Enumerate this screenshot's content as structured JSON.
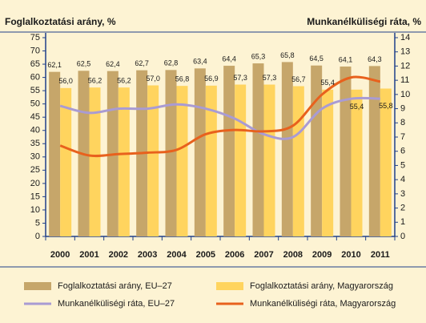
{
  "chart_data": {
    "type": "bar_line",
    "y_title": "Foglalkoztatási arány, %",
    "y2_title": "Munkanélküliségi ráta, %",
    "categories": [
      "2000",
      "2001",
      "2002",
      "2003",
      "2004",
      "2005",
      "2006",
      "2007",
      "2008",
      "2009",
      "2010",
      "2011"
    ],
    "ylim": [
      0,
      75
    ],
    "yticks": [
      0,
      5,
      10,
      15,
      20,
      25,
      30,
      35,
      40,
      45,
      50,
      55,
      60,
      65,
      70,
      75
    ],
    "y2lim": [
      0,
      14
    ],
    "y2ticks": [
      0,
      1,
      2,
      3,
      4,
      5,
      6,
      7,
      8,
      9,
      10,
      11,
      12,
      13,
      14
    ],
    "series": [
      {
        "name": "Foglalkoztatási arány, EU–27",
        "type": "bar",
        "color": "#c6a66a",
        "values": [
          62.1,
          62.5,
          62.4,
          62.7,
          62.8,
          63.4,
          64.4,
          65.3,
          65.8,
          64.5,
          64.1,
          64.3
        ],
        "value_labels": [
          "62,1",
          "62,5",
          "62,4",
          "62,7",
          "62,8",
          "63,4",
          "64,4",
          "65,3",
          "65,8",
          "64,5",
          "64,1",
          "64,3"
        ]
      },
      {
        "name": "Foglalkoztatási arány, Magyarország",
        "type": "bar",
        "color": "#ffd45e",
        "values": [
          56.0,
          56.2,
          56.2,
          57.0,
          56.8,
          56.9,
          57.3,
          57.3,
          56.7,
          55.4,
          55.4,
          55.8
        ],
        "value_labels": [
          "56,0",
          "56,2",
          "56,2",
          "57,0",
          "56,8",
          "56,9",
          "57,3",
          "57,3",
          "56,7",
          "55,4",
          "55,4",
          "55,8"
        ]
      },
      {
        "name": "Munkanélküliségi ráta, EU–27",
        "type": "line",
        "axis": "y2",
        "color": "#a99bd3",
        "values": [
          9.2,
          8.7,
          9.0,
          9.0,
          9.3,
          9.0,
          8.3,
          7.2,
          7.0,
          9.0,
          9.7,
          9.7
        ]
      },
      {
        "name": "Munkanélküliségi ráta, Magyarország",
        "type": "line",
        "axis": "y2",
        "color": "#e8611d",
        "values": [
          6.4,
          5.7,
          5.8,
          5.9,
          6.1,
          7.2,
          7.5,
          7.4,
          7.8,
          10.0,
          11.2,
          10.9
        ]
      }
    ]
  }
}
